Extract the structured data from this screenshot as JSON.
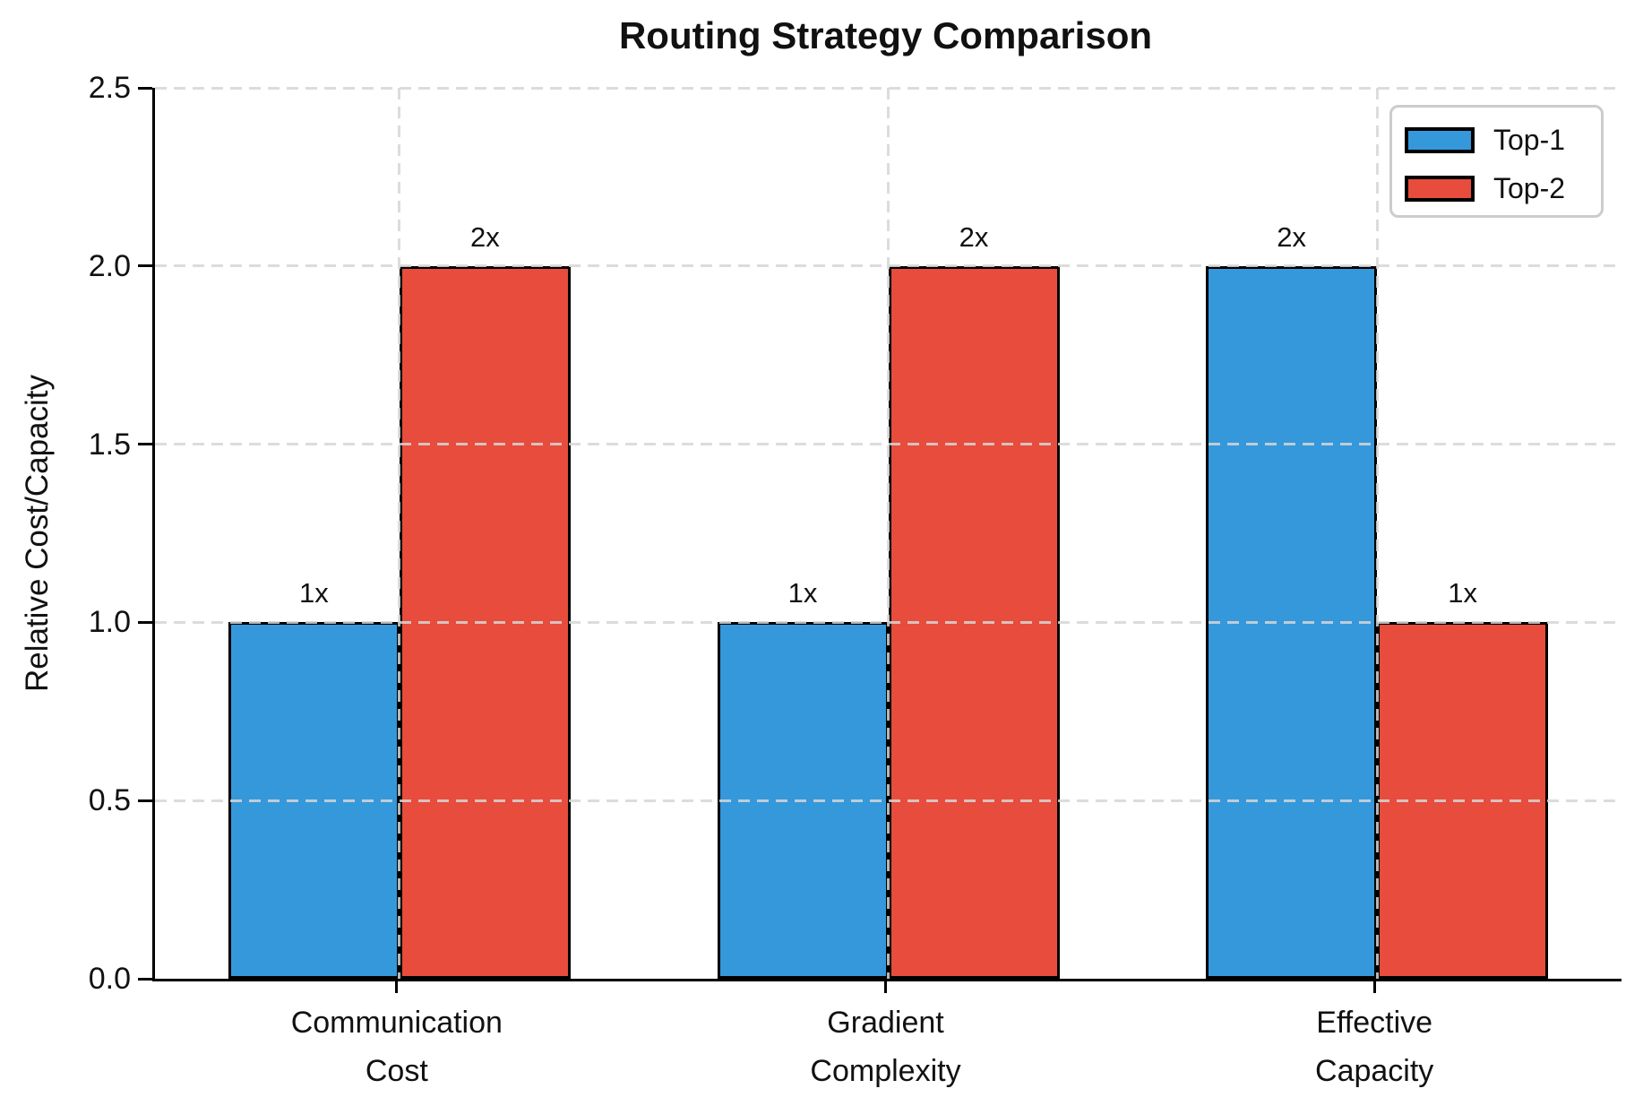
{
  "chart_data": {
    "type": "bar",
    "title": "Routing Strategy Comparison",
    "ylabel": "Relative Cost/Capacity",
    "xlabel": "",
    "categories": [
      "Communication\nCost",
      "Gradient\nComplexity",
      "Effective\nCapacity"
    ],
    "series": [
      {
        "name": "Top-1",
        "color": "#3498db",
        "values": [
          1,
          1,
          2
        ],
        "bar_labels": [
          "1x",
          "1x",
          "2x"
        ]
      },
      {
        "name": "Top-2",
        "color": "#e74c3c",
        "values": [
          2,
          2,
          1
        ],
        "bar_labels": [
          "2x",
          "2x",
          "1x"
        ]
      }
    ],
    "ylim": [
      0,
      2.5
    ],
    "yticks": [
      "0.0",
      "0.5",
      "1.0",
      "1.5",
      "2.0",
      "2.5"
    ],
    "grid": true,
    "grid_style": "dashed",
    "legend": {
      "position": "upper right",
      "entries": [
        "Top-1",
        "Top-2"
      ]
    },
    "colors": {
      "bar_edge": "#000000",
      "grid": "#d6d6d6",
      "axis": "#000000",
      "legend_border": "#cccccc",
      "text": "#111111"
    }
  }
}
